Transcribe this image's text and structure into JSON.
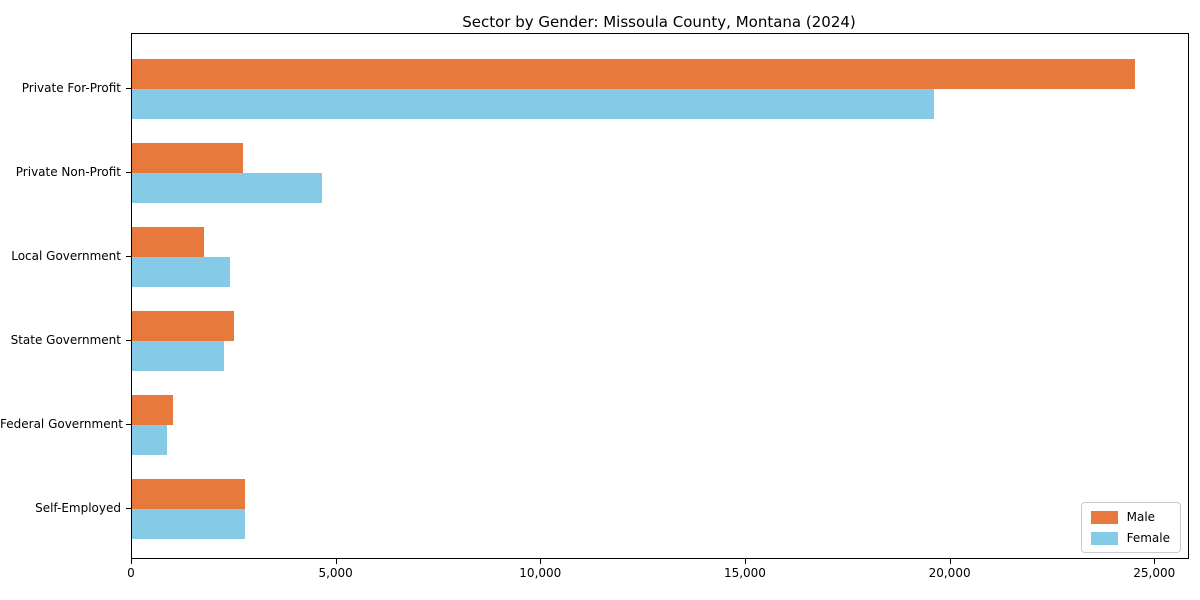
{
  "title": "Sector by Gender: Missoula County, Montana (2024)",
  "chart_data": {
    "type": "bar",
    "orientation": "horizontal",
    "title": "Sector by Gender: Missoula County, Montana (2024)",
    "xlabel": "",
    "ylabel": "",
    "categories": [
      "Private For-Profit",
      "Private Non-Profit",
      "Local Government",
      "State Government",
      "Federal Government",
      "Self-Employed"
    ],
    "series": [
      {
        "name": "Male",
        "color": "#e8793c",
        "values": [
          24500,
          2700,
          1750,
          2500,
          1000,
          2750
        ]
      },
      {
        "name": "Female",
        "color": "#85cbe8",
        "values": [
          19600,
          4650,
          2400,
          2250,
          850,
          2760
        ]
      }
    ],
    "xlim": [
      0,
      25800
    ],
    "xticks": {
      "values": [
        0,
        5000,
        10000,
        15000,
        20000,
        25000
      ],
      "labels": [
        "0",
        "5,000",
        "10,000",
        "15,000",
        "20,000",
        "25,000"
      ]
    },
    "grid": false,
    "legend": {
      "position": "lower right",
      "entries": [
        "Male",
        "Female"
      ]
    }
  }
}
